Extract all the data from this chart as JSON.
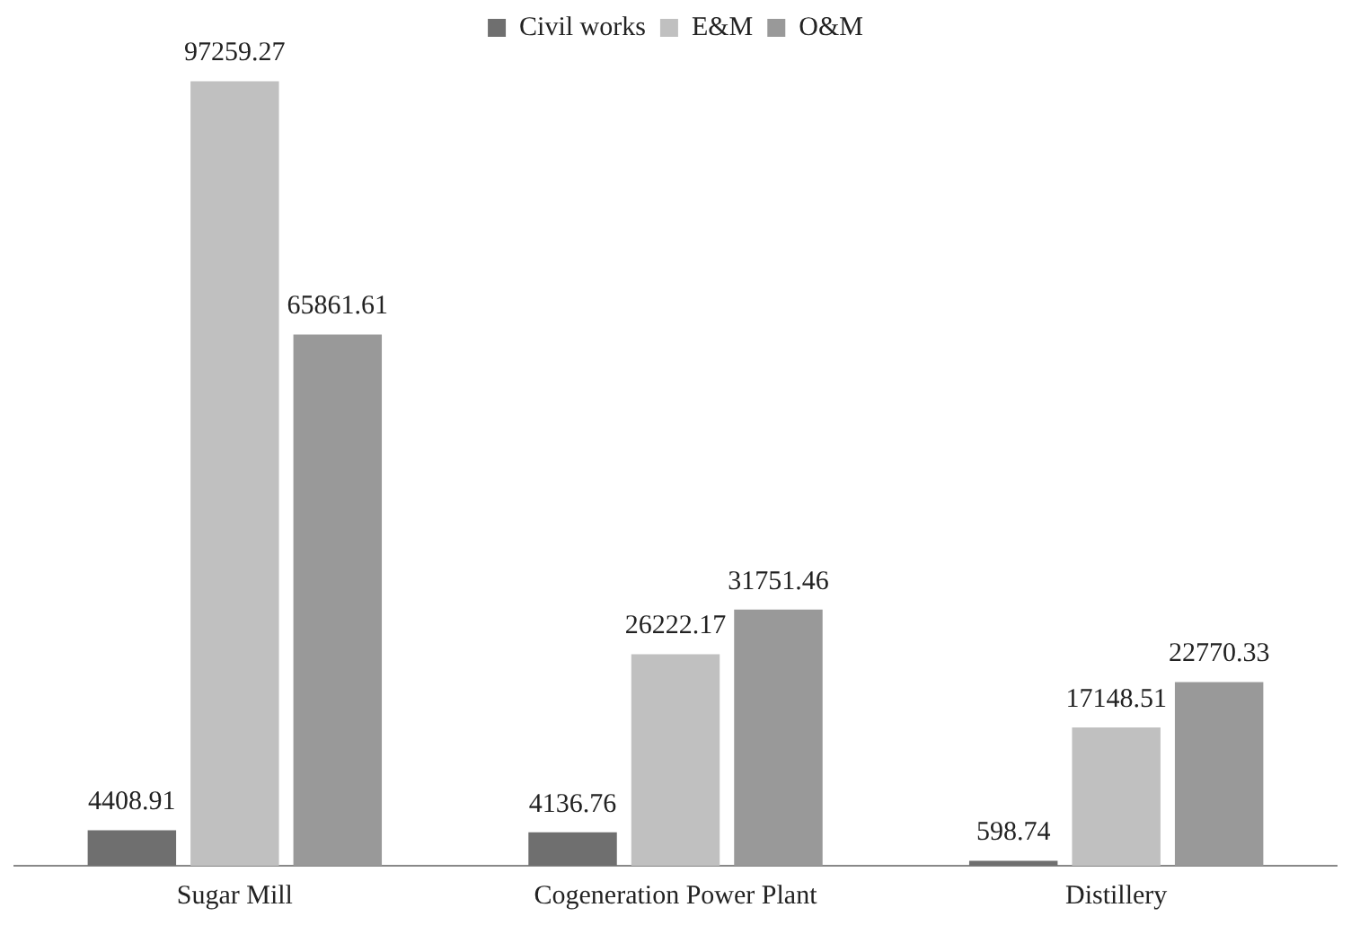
{
  "chart_data": {
    "type": "bar",
    "categories": [
      "Sugar Mill",
      "Cogeneration Power Plant",
      "Distillery"
    ],
    "series": [
      {
        "name": "Civil works",
        "color": "#6f6f6f",
        "values": [
          4408.91,
          4136.76,
          598.74
        ]
      },
      {
        "name": "E&M",
        "color": "#c0c0c0",
        "values": [
          97259.27,
          26222.17,
          17148.51
        ]
      },
      {
        "name": "O&M",
        "color": "#999999",
        "values": [
          65861.61,
          31751.46,
          22770.33
        ]
      }
    ],
    "data_labels": true,
    "grid": false,
    "legend": "top"
  }
}
